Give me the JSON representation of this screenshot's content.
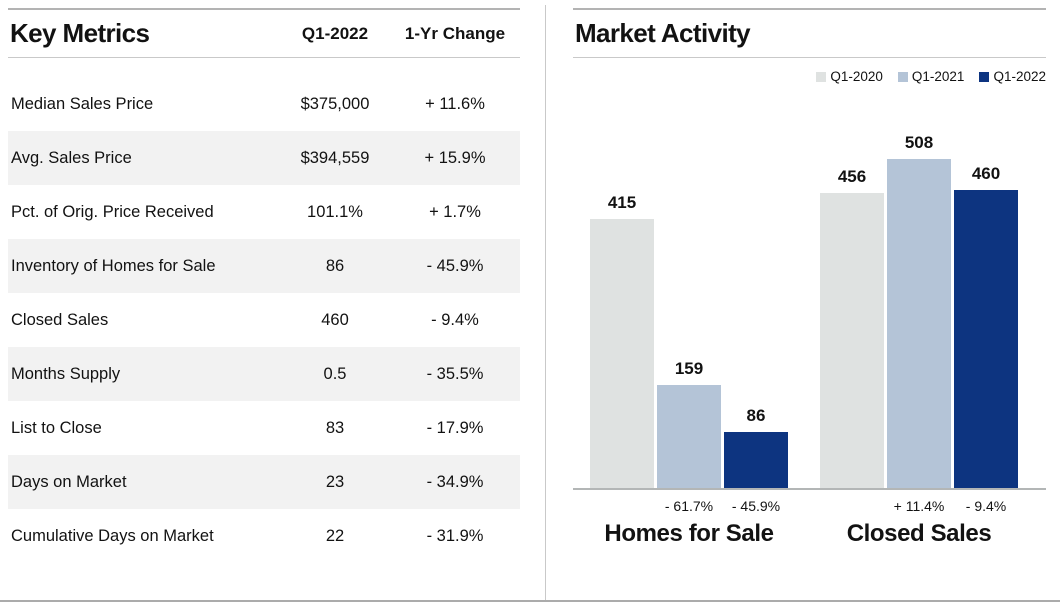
{
  "left_panel": {
    "title": "Key Metrics",
    "columns": [
      "Q1-2022",
      "1-Yr Change"
    ],
    "rows": [
      {
        "metric": "Median Sales Price",
        "value": "$375,000",
        "change": "+ 11.6%"
      },
      {
        "metric": "Avg. Sales Price",
        "value": "$394,559",
        "change": "+ 15.9%"
      },
      {
        "metric": "Pct. of Orig. Price Received",
        "value": "101.1%",
        "change": "+ 1.7%"
      },
      {
        "metric": "Inventory of Homes for Sale",
        "value": "86",
        "change": "- 45.9%"
      },
      {
        "metric": "Closed Sales",
        "value": "460",
        "change": "- 9.4%"
      },
      {
        "metric": "Months Supply",
        "value": "0.5",
        "change": "- 35.5%"
      },
      {
        "metric": "List to Close",
        "value": "83",
        "change": "- 17.9%"
      },
      {
        "metric": "Days on Market",
        "value": "23",
        "change": "- 34.9%"
      },
      {
        "metric": "Cumulative Days on Market",
        "value": "22",
        "change": "- 31.9%"
      }
    ]
  },
  "right_panel": {
    "title": "Market Activity"
  },
  "chart_data": {
    "type": "bar",
    "title": "Market Activity",
    "categories": [
      "Homes for Sale",
      "Closed Sales"
    ],
    "series": [
      {
        "name": "Q1-2020",
        "color": "#dfe2e1",
        "values": [
          415,
          456
        ],
        "pct_labels": [
          null,
          null
        ]
      },
      {
        "name": "Q1-2021",
        "color": "#b4c4d7",
        "values": [
          159,
          508
        ],
        "pct_labels": [
          "- 61.7%",
          "+ 11.4%"
        ]
      },
      {
        "name": "Q1-2022",
        "color": "#0d3480",
        "values": [
          86,
          460
        ],
        "pct_labels": [
          "- 45.9%",
          "- 9.4%"
        ]
      }
    ],
    "ylim": [
      0,
      508
    ],
    "grid": false,
    "legend_position": "top-right",
    "bar_value_labels": true
  },
  "colors": {
    "stripe": "#f2f2f2",
    "rule_dark": "#b3b3b3",
    "rule_light": "#c9c9c9",
    "text": "#121212"
  }
}
